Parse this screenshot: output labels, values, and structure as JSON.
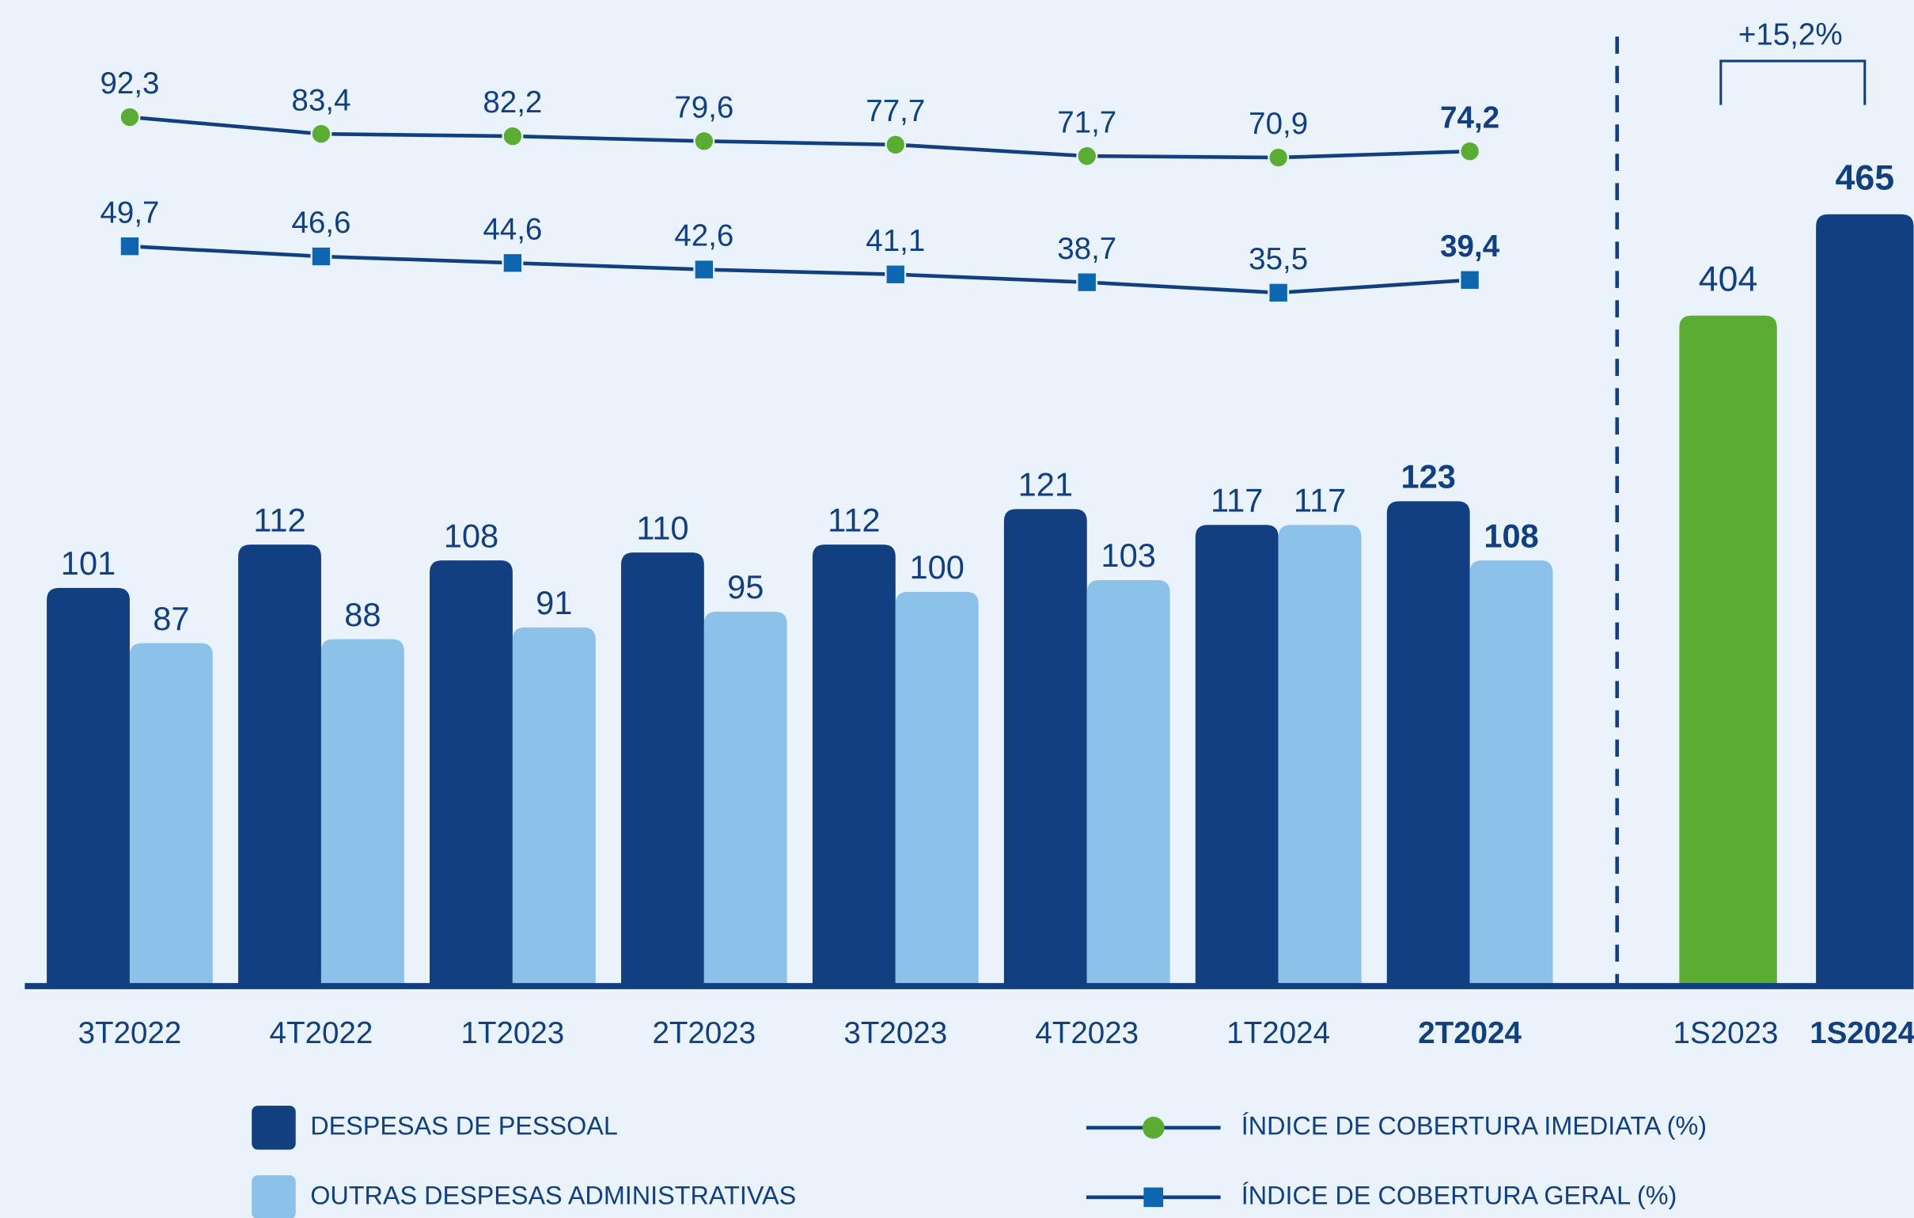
{
  "chart_data": [
    {
      "type": "bar",
      "categories": [
        "3T2022",
        "4T2022",
        "1T2023",
        "2T2023",
        "3T2023",
        "4T2023",
        "1T2024",
        "2T2024"
      ],
      "series": [
        {
          "name": "DESPESAS DE PESSOAL",
          "type": "bar",
          "color": "#123f80",
          "values": [
            101,
            112,
            108,
            110,
            112,
            121,
            117,
            123
          ]
        },
        {
          "name": "OUTRAS DESPESAS ADMINISTRATIVAS",
          "type": "bar",
          "color": "#8cc1ea",
          "values": [
            87,
            88,
            91,
            95,
            100,
            103,
            117,
            108
          ]
        },
        {
          "name": "ÍNDICE DE COBERTURA IMEDIATA (%)",
          "type": "line",
          "marker": "circle",
          "color": "#5aad32",
          "line_color": "#123f80",
          "values": [
            92.3,
            83.4,
            82.2,
            79.6,
            77.7,
            71.7,
            70.9,
            74.2
          ],
          "value_labels": [
            "92,3",
            "83,4",
            "82,2",
            "79,6",
            "77,7",
            "71,7",
            "70,9",
            "74,2"
          ]
        },
        {
          "name": "ÍNDICE DE COBERTURA GERAL (%)",
          "type": "line",
          "marker": "square",
          "color": "#0f66b0",
          "line_color": "#123f80",
          "values": [
            49.7,
            46.6,
            44.6,
            42.6,
            41.1,
            38.7,
            35.5,
            39.4
          ],
          "value_labels": [
            "49,7",
            "46,6",
            "44,6",
            "42,6",
            "41,1",
            "38,7",
            "35,5",
            "39,4"
          ]
        }
      ]
    },
    {
      "type": "bar",
      "categories": [
        "1S2023",
        "1S2024"
      ],
      "values": [
        404,
        465
      ],
      "colors": [
        "#5aad32",
        "#123f80"
      ],
      "annotation": "+15,2%"
    }
  ]
}
